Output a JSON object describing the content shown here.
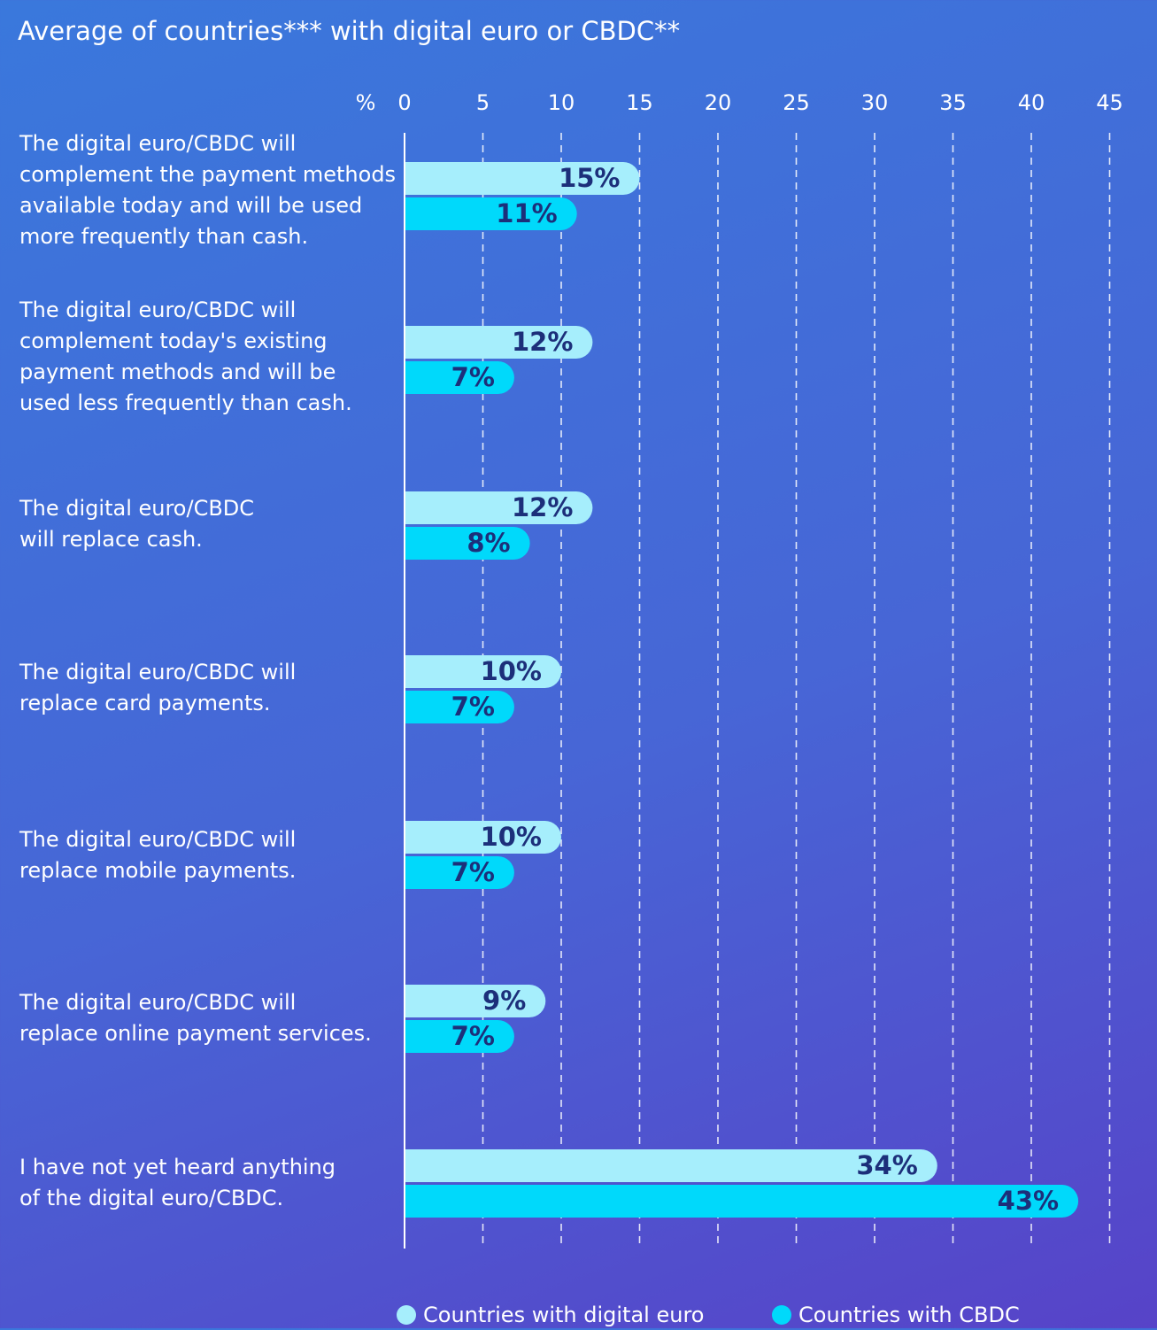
{
  "chart_data": {
    "type": "bar",
    "orientation": "horizontal",
    "title": "Average of countries*** with digital euro or CBDC**",
    "unit_label": "%",
    "x_ticks": [
      0,
      5,
      10,
      15,
      20,
      25,
      30,
      35,
      40,
      45
    ],
    "xlim": [
      0,
      45
    ],
    "grid": true,
    "legend_position": "bottom",
    "categories": [
      "The digital euro/CBDC will complement the payment methods available today and will be used more frequently than cash.",
      "The digital euro/CBDC will complement today's existing payment methods and will be used less frequently than cash.",
      "The digital euro/CBDC will replace cash.",
      "The digital euro/CBDC will replace card payments.",
      "The digital euro/CBDC will replace mobile payments.",
      "The digital euro/CBDC will replace online payment services.",
      "I have not yet heard anything of the digital euro/CBDC."
    ],
    "category_lines": [
      [
        "The digital euro/CBDC will",
        "complement the payment methods",
        "available today and will be used",
        "more frequently than cash."
      ],
      [
        "The digital euro/CBDC will",
        "complement today's existing",
        "payment methods and will be",
        "used less frequently than cash."
      ],
      [
        "The digital euro/CBDC",
        "will replace cash."
      ],
      [
        "The digital euro/CBDC will",
        "replace card payments."
      ],
      [
        "The digital euro/CBDC will",
        "replace mobile payments."
      ],
      [
        "The digital euro/CBDC will",
        "replace online payment services."
      ],
      [
        "I have not yet heard anything",
        "of the digital euro/CBDC."
      ]
    ],
    "series": [
      {
        "name": "Countries with digital euro",
        "color": "#a6eefc",
        "values": [
          15,
          12,
          12,
          10,
          10,
          9,
          34
        ]
      },
      {
        "name": "Countries with CBDC",
        "color": "#00d9fb",
        "values": [
          11,
          7,
          8,
          7,
          7,
          7,
          43
        ]
      }
    ],
    "data_label_suffix": "%",
    "colors": {
      "label_text": "#1c2f7a",
      "grid": "#ffffff",
      "axis": "#ffffff"
    }
  }
}
